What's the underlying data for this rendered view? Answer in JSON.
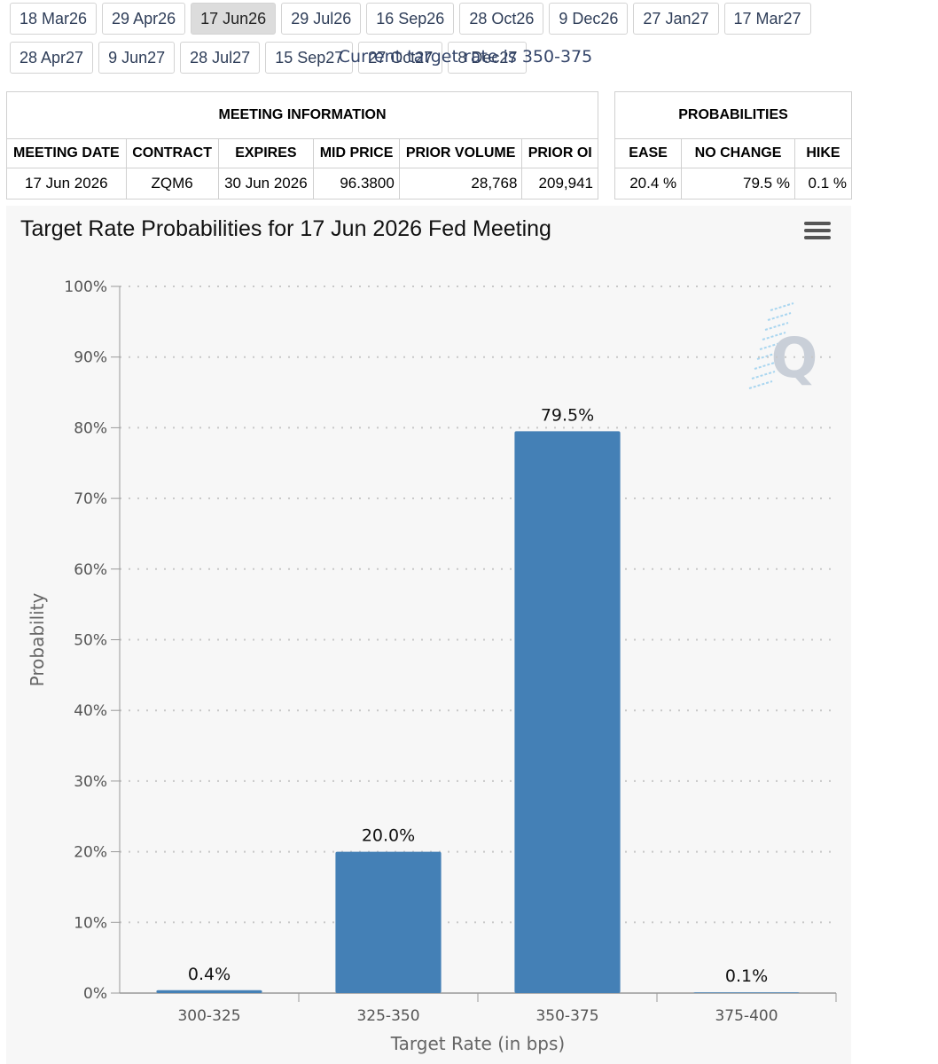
{
  "tabs_row1": [
    "18 Mar26",
    "29 Apr26",
    "17 Jun26",
    "29 Jul26",
    "16 Sep26",
    "28 Oct26",
    "9 Dec26",
    "27 Jan27",
    "17 Mar27"
  ],
  "tabs_row2": [
    "28 Apr27",
    "9 Jun27",
    "28 Jul27",
    "15 Sep27",
    "27 Oct27",
    "8 Dec27"
  ],
  "active_tab": "17 Jun26",
  "meeting_info": {
    "heading": "MEETING INFORMATION",
    "headers": [
      "MEETING DATE",
      "CONTRACT",
      "EXPIRES",
      "MID PRICE",
      "PRIOR VOLUME",
      "PRIOR OI"
    ],
    "row": [
      "17 Jun 2026",
      "ZQM6",
      "30 Jun 2026",
      "96.3800",
      "28,768",
      "209,941"
    ]
  },
  "probabilities": {
    "heading": "PROBABILITIES",
    "headers": [
      "EASE",
      "NO CHANGE",
      "HIKE"
    ],
    "row": [
      "20.4 %",
      "79.5 %",
      "0.1 %"
    ]
  },
  "colors": {
    "bar": "#4480b6",
    "tab_text": "#2f3e59",
    "subtitle": "#34456a",
    "watermark": "#c9cfd8"
  },
  "chart_data": {
    "type": "bar",
    "title": "Target Rate Probabilities for 17 Jun 2026 Fed Meeting",
    "subtitle": "Current target rate is 350-375",
    "categories": [
      "300-325",
      "325-350",
      "350-375",
      "375-400"
    ],
    "values": [
      0.4,
      20.0,
      79.5,
      0.1
    ],
    "data_labels": [
      "0.4%",
      "20.0%",
      "79.5%",
      "0.1%"
    ],
    "xlabel": "Target Rate (in bps)",
    "ylabel": "Probability",
    "ylim": [
      0,
      100
    ],
    "yticks": [
      0,
      10,
      20,
      30,
      40,
      50,
      60,
      70,
      80,
      90,
      100
    ],
    "ytick_labels": [
      "0%",
      "10%",
      "20%",
      "30%",
      "40%",
      "50%",
      "60%",
      "70%",
      "80%",
      "90%",
      "100%"
    ],
    "grid": true,
    "watermark_letter": "Q"
  }
}
